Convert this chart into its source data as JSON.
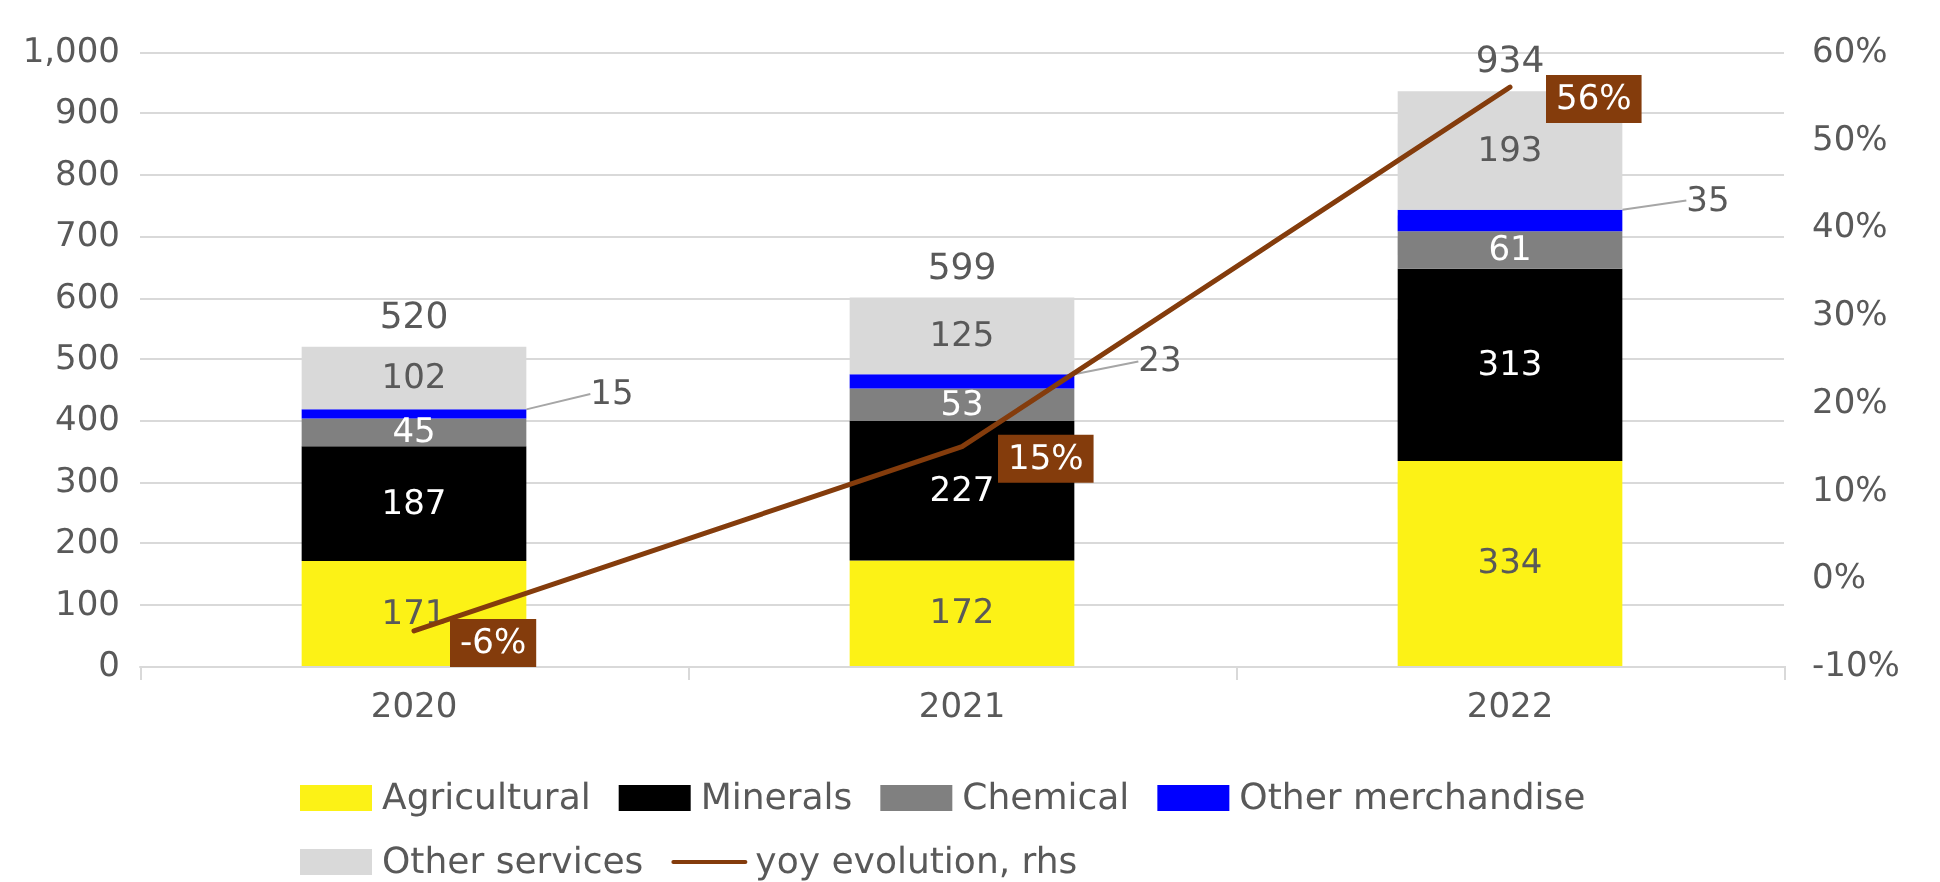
{
  "chart_data": {
    "type": "bar",
    "stacked": true,
    "categories": [
      "2020",
      "2021",
      "2022"
    ],
    "series": [
      {
        "name": "Agricultural",
        "color": "#fcf216",
        "values": [
          171,
          172,
          334
        ],
        "value_labels": [
          "171",
          "172",
          "334"
        ]
      },
      {
        "name": "Minerals",
        "color": "#000000",
        "values": [
          187,
          227,
          313
        ],
        "value_labels": [
          "187",
          "227",
          "313"
        ]
      },
      {
        "name": "Chemical",
        "color": "#808080",
        "values": [
          45,
          53,
          61
        ],
        "value_labels": [
          "45",
          "53",
          "61"
        ]
      },
      {
        "name": "Other merchandise",
        "color": "#0000ff",
        "values": [
          15,
          23,
          35
        ],
        "value_labels": [
          "15",
          "23",
          "35"
        ]
      },
      {
        "name": "Other services",
        "color": "#d9d9d9",
        "values": [
          102,
          125,
          193
        ],
        "value_labels": [
          "102",
          "125",
          "193"
        ]
      },
      {
        "name": "yoy evolution, rhs",
        "type": "line",
        "axis": "y2",
        "color": "#843c0c",
        "values": [
          -6,
          15,
          56
        ],
        "value_labels": [
          "-6%",
          "15%",
          "56%"
        ]
      }
    ],
    "totals": [
      "520",
      "599",
      "934"
    ],
    "ylim": [
      0,
      1000
    ],
    "yticks": [
      0,
      100,
      200,
      300,
      400,
      500,
      600,
      700,
      800,
      900,
      {
        "value": 1000,
        "label": "1,000"
      }
    ],
    "y2lim": [
      -10,
      60
    ],
    "y2ticks": [
      {
        "value": -10,
        "label": "-10%"
      },
      {
        "value": 0,
        "label": "0%"
      },
      {
        "value": 10,
        "label": "10%"
      },
      {
        "value": 20,
        "label": "20%"
      },
      {
        "value": 30,
        "label": "30%"
      },
      {
        "value": 40,
        "label": "40%"
      },
      {
        "value": 50,
        "label": "50%"
      },
      {
        "value": 60,
        "label": "60%"
      }
    ],
    "grid": "y",
    "legend": "bottom"
  }
}
